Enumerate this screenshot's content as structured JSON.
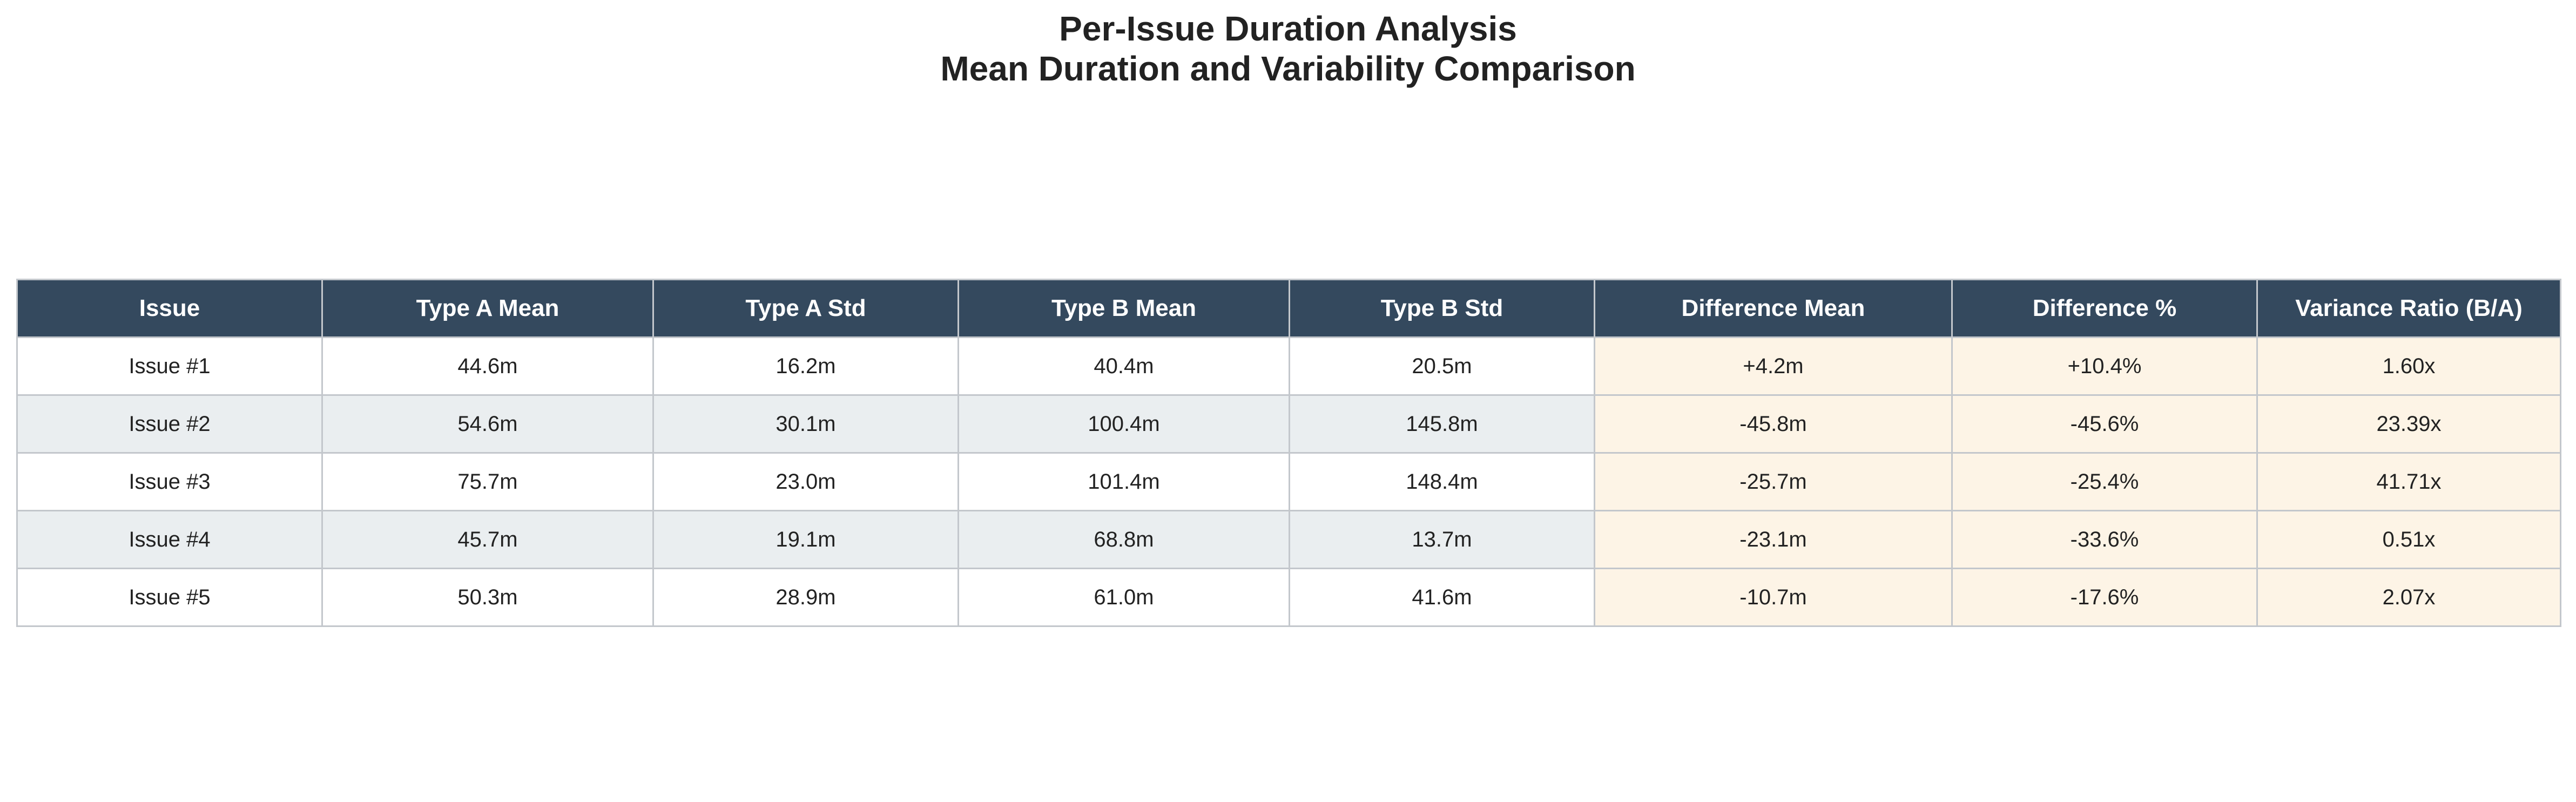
{
  "chart_data": {
    "type": "table",
    "title": "Per-Issue Duration Analysis",
    "subtitle": "Mean Duration and Variability Comparison",
    "columns": [
      "Issue",
      "Type A Mean",
      "Type A Std",
      "Type B Mean",
      "Type B Std",
      "Difference Mean",
      "Difference %",
      "Variance Ratio (B/A)"
    ],
    "rows": [
      [
        "Issue #1",
        "44.6m",
        "16.2m",
        "40.4m",
        "20.5m",
        "+4.2m",
        "+10.4%",
        "1.60x"
      ],
      [
        "Issue #2",
        "54.6m",
        "30.1m",
        "100.4m",
        "145.8m",
        "-45.8m",
        "-45.6%",
        "23.39x"
      ],
      [
        "Issue #3",
        "75.7m",
        "23.0m",
        "101.4m",
        "148.4m",
        "-25.7m",
        "-25.4%",
        "41.71x"
      ],
      [
        "Issue #4",
        "45.7m",
        "19.1m",
        "68.8m",
        "13.7m",
        "-23.1m",
        "-33.6%",
        "0.51x"
      ],
      [
        "Issue #5",
        "50.3m",
        "28.9m",
        "61.0m",
        "41.6m",
        "-10.7m",
        "-17.6%",
        "2.07x"
      ]
    ],
    "colors": {
      "header_bg": "#34495e",
      "header_text": "#ffffff",
      "row_alt_bg": "#eaeef0",
      "difference_bg": "#fdf4e6",
      "border": "#c3c7cc"
    }
  }
}
